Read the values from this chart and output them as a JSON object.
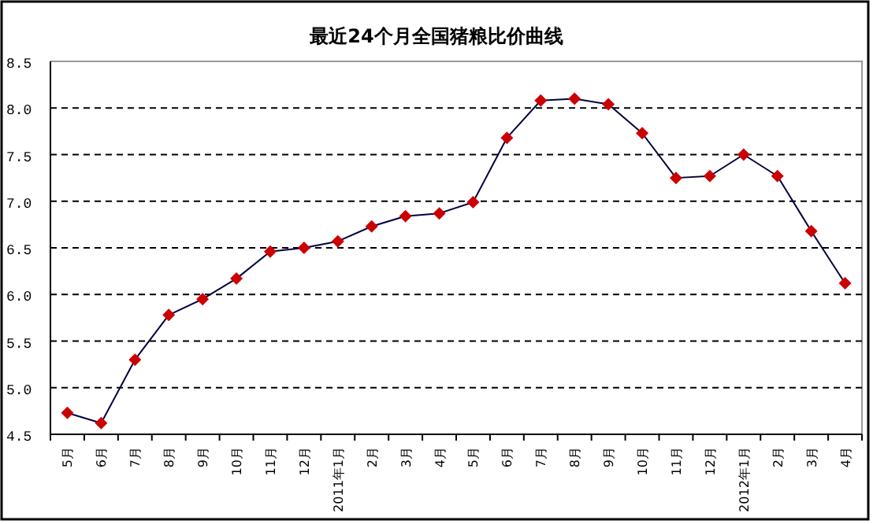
{
  "chart_data": {
    "type": "line",
    "title": "最近24个月全国猪粮比价曲线",
    "categories": [
      "5月",
      "6月",
      "7月",
      "8月",
      "9月",
      "10月",
      "11月",
      "12月",
      "2011年1月",
      "2月",
      "3月",
      "4月",
      "5月",
      "6月",
      "7月",
      "8月",
      "9月",
      "10月",
      "11月",
      "12月",
      "2012年1月",
      "2月",
      "3月",
      "4月"
    ],
    "series": [
      {
        "color": "#cc0000",
        "values": [
          4.73,
          4.62,
          5.3,
          5.78,
          5.95,
          6.17,
          6.46,
          6.5,
          6.57,
          6.73,
          6.84,
          6.87,
          6.99,
          7.68,
          8.08,
          8.1,
          8.04,
          7.73,
          7.25,
          7.27,
          7.5,
          7.27,
          6.68,
          6.12
        ]
      }
    ],
    "ylim": [
      4.5,
      8.5
    ],
    "yticks": [
      {
        "value": 4.5,
        "label": "4.5"
      },
      {
        "value": 5,
        "label": "5.0"
      },
      {
        "value": 5.5,
        "label": "5.5"
      },
      {
        "value": 6,
        "label": "6.0"
      },
      {
        "value": 6.5,
        "label": "6.5"
      },
      {
        "value": 7,
        "label": "7.0"
      },
      {
        "value": 7.5,
        "label": "7.5"
      },
      {
        "value": 8,
        "label": "8.0"
      },
      {
        "value": 8.5,
        "label": "8.5"
      }
    ],
    "grid": "y",
    "marker": "diamond",
    "line_style": "solid"
  }
}
